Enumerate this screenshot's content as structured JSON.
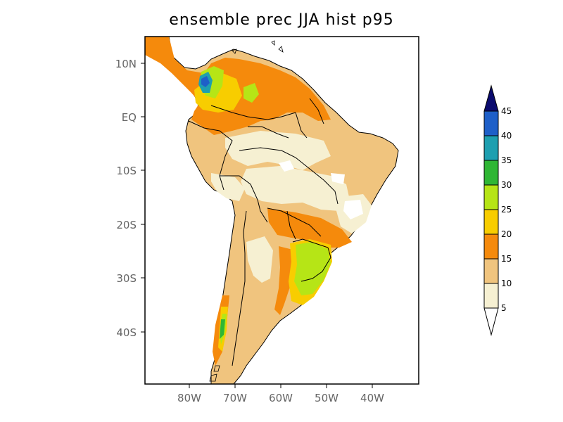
{
  "title": "ensemble prec JJA hist p95",
  "map": {
    "lat_ticks": [
      "10N",
      "EQ",
      "10S",
      "20S",
      "30S",
      "40S"
    ],
    "lon_ticks": [
      "80W",
      "70W",
      "60W",
      "50W",
      "40W"
    ]
  },
  "colorbar": {
    "levels": [
      "5",
      "10",
      "15",
      "20",
      "25",
      "30",
      "35",
      "40",
      "45"
    ],
    "colors": [
      "#f6f0d2",
      "#f0c47e",
      "#f58a0c",
      "#f8cd00",
      "#b6e516",
      "#2fb634",
      "#1e9fb0",
      "#1e5fc8",
      "#0a0a6e"
    ],
    "under_color": "#ffffff"
  }
}
